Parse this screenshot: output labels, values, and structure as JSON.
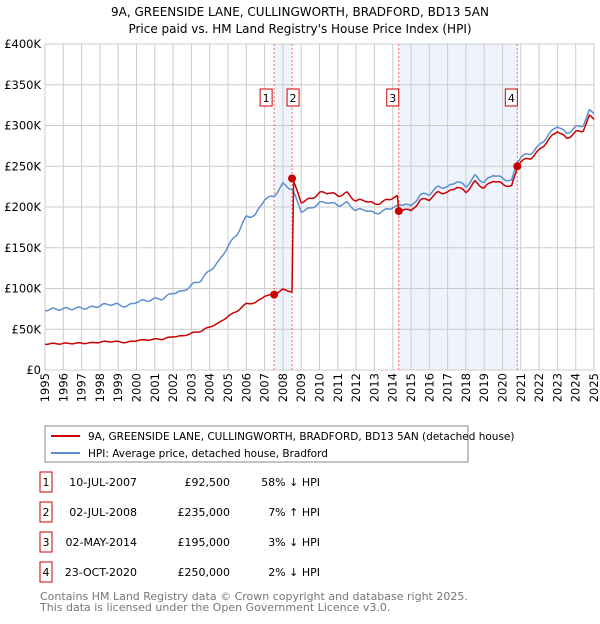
{
  "chart_data": {
    "type": "line",
    "title": "9A, GREENSIDE LANE, CULLINGWORTH, BRADFORD, BD13 5AN",
    "subtitle": "Price paid vs. HM Land Registry's House Price Index (HPI)",
    "xlim": [
      1995,
      2025
    ],
    "ylim": [
      0,
      400000
    ],
    "grid": true,
    "y_ticks": [
      {
        "v": 0,
        "label": "£0"
      },
      {
        "v": 50000,
        "label": "£50K"
      },
      {
        "v": 100000,
        "label": "£100K"
      },
      {
        "v": 150000,
        "label": "£150K"
      },
      {
        "v": 200000,
        "label": "£200K"
      },
      {
        "v": 250000,
        "label": "£250K"
      },
      {
        "v": 300000,
        "label": "£300K"
      },
      {
        "v": 350000,
        "label": "£350K"
      },
      {
        "v": 400000,
        "label": "£400K"
      }
    ],
    "x_ticks": [
      "1995",
      "1996",
      "1997",
      "1998",
      "1999",
      "2000",
      "2001",
      "2002",
      "2003",
      "2004",
      "2005",
      "2006",
      "2007",
      "2008",
      "2009",
      "2010",
      "2011",
      "2012",
      "2013",
      "2014",
      "2015",
      "2016",
      "2017",
      "2018",
      "2019",
      "2020",
      "2021",
      "2022",
      "2023",
      "2024",
      "2025"
    ],
    "colors": {
      "property": "#cc0000",
      "hpi": "#5b8fd0",
      "shade": "#eef3fc",
      "marker_line": "#ff6666"
    },
    "hpi": {
      "name": "HPI: Average price, detached house, Bradford",
      "x": [
        1995,
        1995.5,
        1996,
        1996.5,
        1997,
        1997.5,
        1998,
        1998.5,
        1999,
        1999.5,
        2000,
        2000.5,
        2001,
        2001.5,
        2002,
        2002.5,
        2003,
        2003.5,
        2004,
        2004.5,
        2005,
        2005.5,
        2006,
        2006.5,
        2007,
        2007.5,
        2008,
        2008.5,
        2009,
        2009.5,
        2010,
        2010.5,
        2011,
        2011.5,
        2012,
        2012.5,
        2013,
        2013.5,
        2014,
        2014.33,
        2014.7,
        2015,
        2015.5,
        2016,
        2016.5,
        2017,
        2017.5,
        2018,
        2018.5,
        2019,
        2019.5,
        2020,
        2020.5,
        2020.8,
        2021,
        2021.5,
        2022,
        2022.5,
        2023,
        2023.5,
        2024,
        2024.4,
        2024.75,
        2025
      ],
      "y": [
        74000,
        74500,
        75000,
        75500,
        76000,
        76500,
        79000,
        81000,
        80000,
        78000,
        84000,
        85000,
        87000,
        88000,
        95000,
        96000,
        104000,
        110000,
        122000,
        133000,
        152000,
        167000,
        188000,
        190000,
        210000,
        213000,
        228000,
        222000,
        195000,
        198000,
        205000,
        206000,
        202000,
        205000,
        196000,
        197000,
        192000,
        195000,
        200000,
        201000,
        205000,
        200000,
        215000,
        216000,
        225000,
        224000,
        232000,
        225000,
        238000,
        230000,
        240000,
        235000,
        232000,
        255000,
        262000,
        265000,
        275000,
        288000,
        300000,
        290000,
        298000,
        300000,
        318000,
        315000
      ]
    },
    "property": {
      "name": "9A, GREENSIDE LANE, CULLINGWORTH, BRADFORD, BD13 5AN (detached house)"
    },
    "sales": [
      {
        "id": "1",
        "x": 2007.52,
        "date": "10-JUL-2007",
        "price": 92500,
        "price_label": "£92,500",
        "hpi_diff": "58% ↓ HPI"
      },
      {
        "id": "2",
        "x": 2008.5,
        "date": "02-JUL-2008",
        "price": 235000,
        "price_label": "£235,000",
        "hpi_diff": "7% ↑ HPI"
      },
      {
        "id": "3",
        "x": 2014.33,
        "date": "02-MAY-2014",
        "price": 195000,
        "price_label": "£195,000",
        "hpi_diff": "3% ↓ HPI"
      },
      {
        "id": "4",
        "x": 2020.81,
        "date": "23-OCT-2020",
        "price": 250000,
        "price_label": "£250,000",
        "hpi_diff": "2% ↓ HPI"
      }
    ],
    "shaded_ranges": [
      [
        2007.52,
        2008.5
      ],
      [
        2014.33,
        2020.81
      ]
    ]
  },
  "footer": {
    "line1": "Contains HM Land Registry data © Crown copyright and database right 2025.",
    "line2": "This data is licensed under the Open Government Licence v3.0."
  }
}
